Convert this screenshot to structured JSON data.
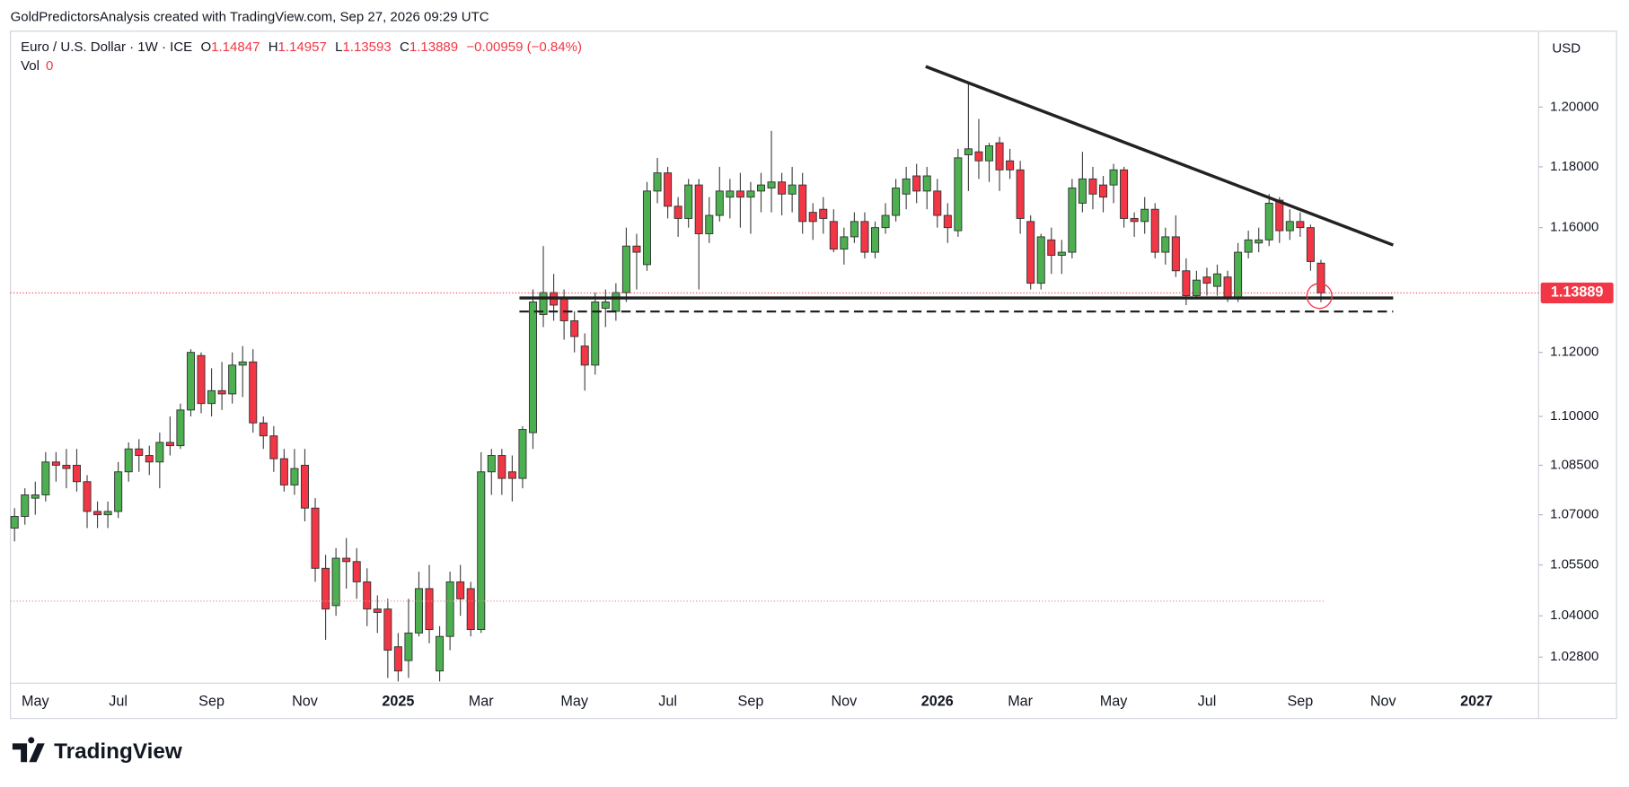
{
  "attribution": "GoldPredictorsAnalysis created with TradingView.com, Sep 27, 2026 09:29 UTC",
  "watermark": "TradingView",
  "chart_data": {
    "type": "candlestick",
    "title": "Euro / U.S. Dollar · 1W · ICE",
    "ohlc_labels": [
      "O",
      "H",
      "L",
      "C"
    ],
    "change": "−0.00959 (−0.84%)",
    "volume_label": "Vol",
    "volume": 0,
    "currency": "USD",
    "log_scale": true,
    "up_color": "#4caf50",
    "down_color": "#f23645",
    "ylim": [
      1.0205,
      1.2259
    ],
    "yticks": [
      {
        "value": 1.2,
        "label": "1.20000"
      },
      {
        "value": 1.18,
        "label": "1.18000"
      },
      {
        "value": 1.16,
        "label": "1.16000"
      },
      {
        "value": 1.12,
        "label": "1.12000"
      },
      {
        "value": 1.1,
        "label": "1.10000"
      },
      {
        "value": 1.085,
        "label": "1.08500"
      },
      {
        "value": 1.07,
        "label": "1.07000"
      },
      {
        "value": 1.055,
        "label": "1.05500"
      },
      {
        "value": 1.04,
        "label": "1.04000"
      },
      {
        "value": 1.028,
        "label": "1.02800"
      }
    ],
    "categories": [
      null,
      null,
      "May",
      null,
      null,
      null,
      null,
      null,
      null,
      null,
      "Jul",
      null,
      null,
      null,
      null,
      null,
      null,
      null,
      null,
      "Sep",
      null,
      null,
      null,
      null,
      null,
      null,
      null,
      null,
      "Nov",
      null,
      null,
      null,
      null,
      null,
      null,
      null,
      null,
      "2025",
      null,
      null,
      null,
      null,
      null,
      null,
      null,
      "Mar",
      null,
      null,
      null,
      null,
      null,
      null,
      null,
      null,
      "May",
      null,
      null,
      null,
      null,
      null,
      null,
      null,
      null,
      "Jul",
      null,
      null,
      null,
      null,
      null,
      null,
      null,
      "Sep",
      null,
      null,
      null,
      null,
      null,
      null,
      null,
      null,
      "Nov",
      null,
      null,
      null,
      null,
      null,
      null,
      null,
      null,
      "2026",
      null,
      null,
      null,
      null,
      null,
      null,
      null,
      "Mar",
      null,
      null,
      null,
      null,
      null,
      null,
      null,
      null,
      "May",
      null,
      null,
      null,
      null,
      null,
      null,
      null,
      null,
      "Jul",
      null,
      null,
      null,
      null,
      null,
      null,
      null,
      null,
      "Sep",
      null,
      null,
      null,
      null,
      null,
      null,
      null,
      "Nov",
      null,
      null,
      null,
      null,
      null,
      null,
      null,
      null,
      "2027",
      null,
      null,
      null,
      null,
      null,
      null
    ],
    "open": [
      1.066,
      1.0695,
      1.075,
      1.076,
      1.086,
      1.085,
      1.085,
      1.08,
      1.071,
      1.07,
      1.071,
      1.083,
      1.09,
      1.088,
      1.086,
      1.092,
      1.091,
      1.102,
      1.119,
      1.104,
      1.108,
      1.107,
      1.116,
      1.117,
      1.098,
      1.094,
      1.087,
      1.079,
      1.085,
      1.072,
      1.054,
      1.043,
      1.057,
      1.056,
      1.05,
      1.042,
      1.042,
      1.031,
      1.027,
      1.035,
      1.048,
      1.024,
      1.034,
      1.05,
      1.048,
      1.036,
      1.083,
      1.088,
      1.083,
      1.081,
      1.095,
      1.132,
      1.139,
      1.137,
      1.13,
      1.122,
      1.116,
      1.134,
      1.133,
      1.139,
      1.154,
      1.148,
      1.172,
      1.178,
      1.167,
      1.163,
      1.174,
      1.158,
      1.164,
      1.17,
      1.172,
      1.17,
      1.172,
      1.173,
      1.175,
      1.171,
      1.174,
      1.165,
      1.166,
      1.162,
      1.153,
      1.157,
      1.162,
      1.152,
      1.16,
      1.164,
      1.171,
      1.177,
      1.172,
      1.172,
      1.164,
      1.159,
      1.184,
      1.185,
      1.182,
      1.188,
      1.182,
      1.179,
      1.162,
      1.142,
      1.156,
      1.151,
      1.152,
      1.168,
      1.176,
      1.174,
      1.174,
      1.179,
      1.163,
      1.162,
      1.166,
      1.152,
      1.157,
      1.146,
      1.138,
      1.144,
      1.141,
      1.144,
      1.137,
      1.152,
      1.155,
      1.156,
      1.169,
      1.159,
      1.162,
      1.16,
      1.14847,
      null,
      null,
      null,
      null,
      null,
      null,
      null,
      null,
      null,
      null,
      null,
      null,
      null,
      null,
      null,
      null,
      null,
      null,
      null,
      null,
      null
    ],
    "high": [
      1.072,
      1.078,
      1.08,
      1.089,
      1.089,
      1.09,
      1.09,
      1.082,
      1.074,
      1.074,
      1.086,
      1.092,
      1.093,
      1.091,
      1.095,
      1.1,
      1.104,
      1.121,
      1.12,
      1.115,
      1.117,
      1.12,
      1.122,
      1.121,
      1.1,
      1.097,
      1.09,
      1.09,
      1.09,
      1.075,
      1.058,
      1.06,
      1.063,
      1.06,
      1.054,
      1.046,
      1.045,
      1.035,
      1.045,
      1.053,
      1.055,
      1.037,
      1.053,
      1.055,
      1.05,
      1.089,
      1.09,
      1.09,
      1.088,
      1.097,
      1.14,
      1.154,
      1.145,
      1.14,
      1.133,
      1.126,
      1.139,
      1.14,
      1.142,
      1.16,
      1.158,
      1.175,
      1.183,
      1.18,
      1.17,
      1.176,
      1.176,
      1.17,
      1.18,
      1.176,
      1.178,
      1.175,
      1.178,
      1.192,
      1.178,
      1.18,
      1.178,
      1.168,
      1.17,
      1.166,
      1.16,
      1.165,
      1.165,
      1.162,
      1.168,
      1.176,
      1.18,
      1.181,
      1.18,
      1.176,
      1.168,
      1.186,
      1.208,
      1.196,
      1.188,
      1.19,
      1.186,
      1.182,
      1.164,
      1.158,
      1.16,
      1.156,
      1.176,
      1.185,
      1.18,
      1.177,
      1.181,
      1.18,
      1.165,
      1.17,
      1.168,
      1.16,
      1.164,
      1.15,
      1.146,
      1.147,
      1.148,
      1.146,
      1.155,
      1.159,
      1.16,
      1.171,
      1.17,
      1.166,
      1.165,
      1.161,
      1.14957,
      null,
      null,
      null,
      null,
      null,
      null,
      null,
      null,
      null,
      null,
      null,
      null,
      null,
      null,
      null,
      null,
      null,
      null,
      null,
      null,
      null
    ],
    "low": [
      1.062,
      1.067,
      1.07,
      1.074,
      1.08,
      1.078,
      1.077,
      1.066,
      1.066,
      1.066,
      1.069,
      1.08,
      1.083,
      1.082,
      1.078,
      1.088,
      1.09,
      1.1,
      1.101,
      1.1,
      1.102,
      1.104,
      1.106,
      1.095,
      1.09,
      1.083,
      1.077,
      1.076,
      1.068,
      1.05,
      1.033,
      1.04,
      1.048,
      1.045,
      1.037,
      1.035,
      1.022,
      1.021,
      1.022,
      1.034,
      1.032,
      1.021,
      1.03,
      1.04,
      1.034,
      1.035,
      1.076,
      1.076,
      1.074,
      1.078,
      1.09,
      1.128,
      1.13,
      1.124,
      1.12,
      1.108,
      1.113,
      1.128,
      1.13,
      1.136,
      1.14,
      1.146,
      1.168,
      1.163,
      1.157,
      1.16,
      1.14,
      1.155,
      1.162,
      1.163,
      1.16,
      1.158,
      1.165,
      1.165,
      1.164,
      1.165,
      1.158,
      1.156,
      1.158,
      1.152,
      1.148,
      1.155,
      1.15,
      1.15,
      1.158,
      1.162,
      1.166,
      1.168,
      1.166,
      1.16,
      1.155,
      1.157,
      1.172,
      1.176,
      1.175,
      1.172,
      1.176,
      1.158,
      1.14,
      1.14,
      1.145,
      1.145,
      1.15,
      1.165,
      1.166,
      1.165,
      1.168,
      1.16,
      1.157,
      1.158,
      1.15,
      1.148,
      1.144,
      1.135,
      1.137,
      1.138,
      1.138,
      1.136,
      1.136,
      1.15,
      1.152,
      1.154,
      1.155,
      1.156,
      1.157,
      1.146,
      1.13593,
      null,
      null,
      null,
      null,
      null,
      null,
      null,
      null,
      null,
      null,
      null,
      null,
      null,
      null,
      null,
      null,
      null,
      null,
      null,
      null,
      null
    ],
    "close": [
      1.0695,
      1.076,
      1.076,
      1.086,
      1.085,
      1.084,
      1.08,
      1.071,
      1.07,
      1.071,
      1.083,
      1.09,
      1.088,
      1.086,
      1.092,
      1.091,
      1.102,
      1.12,
      1.104,
      1.108,
      1.107,
      1.116,
      1.117,
      1.098,
      1.094,
      1.087,
      1.079,
      1.084,
      1.072,
      1.054,
      1.042,
      1.057,
      1.056,
      1.05,
      1.042,
      1.041,
      1.03,
      1.024,
      1.035,
      1.048,
      1.036,
      1.034,
      1.05,
      1.045,
      1.036,
      1.083,
      1.088,
      1.081,
      1.081,
      1.096,
      1.136,
      1.139,
      1.135,
      1.13,
      1.125,
      1.116,
      1.136,
      1.136,
      1.139,
      1.154,
      1.152,
      1.172,
      1.178,
      1.167,
      1.163,
      1.174,
      1.158,
      1.164,
      1.172,
      1.172,
      1.17,
      1.172,
      1.174,
      1.175,
      1.171,
      1.174,
      1.162,
      1.162,
      1.163,
      1.153,
      1.157,
      1.162,
      1.152,
      1.16,
      1.164,
      1.173,
      1.176,
      1.172,
      1.177,
      1.164,
      1.16,
      1.183,
      1.186,
      1.182,
      1.187,
      1.179,
      1.179,
      1.163,
      1.142,
      1.157,
      1.151,
      1.152,
      1.173,
      1.176,
      1.171,
      1.17,
      1.179,
      1.163,
      1.162,
      1.166,
      1.152,
      1.157,
      1.146,
      1.138,
      1.143,
      1.142,
      1.145,
      1.137,
      1.152,
      1.156,
      1.156,
      1.168,
      1.159,
      1.162,
      1.16,
      1.149,
      1.13889,
      null,
      null,
      null,
      null,
      null,
      null,
      null,
      null,
      null,
      null,
      null,
      null,
      null,
      null,
      null,
      null,
      null,
      null,
      null,
      null,
      null
    ]
  }
}
